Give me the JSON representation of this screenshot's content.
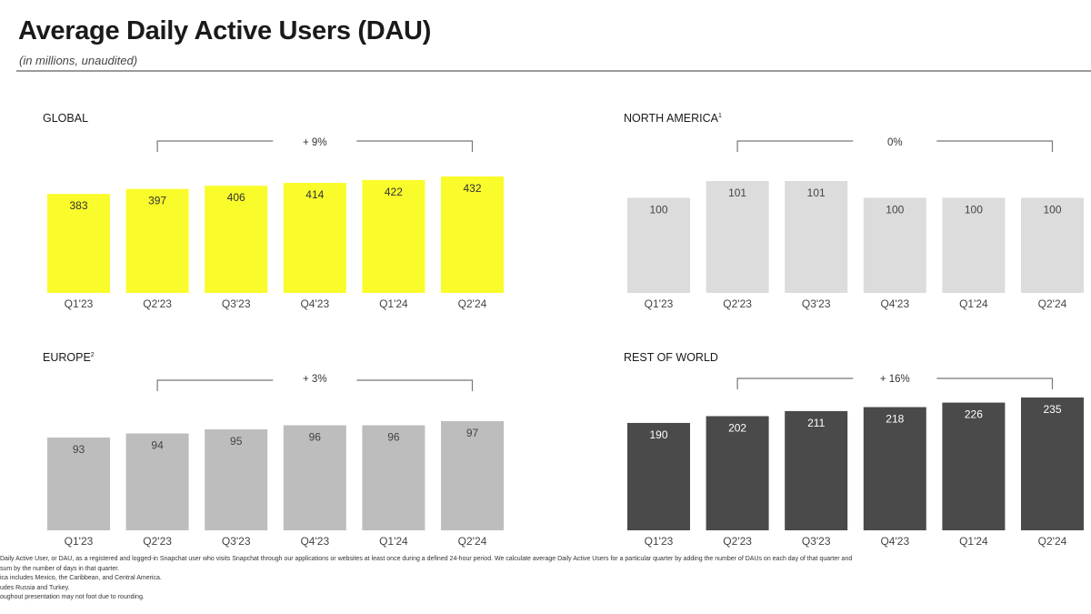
{
  "header": {
    "title": "Average Daily Active Users (DAU)",
    "subtitle": "(in millions, unaudited)"
  },
  "chart_data": [
    {
      "type": "bar",
      "title": "GLOBAL",
      "footnote_mark": "",
      "categories": [
        "Q1'23",
        "Q2'23",
        "Q3'23",
        "Q4'23",
        "Q1'24",
        "Q2'24"
      ],
      "values": [
        383,
        397,
        406,
        414,
        422,
        432
      ],
      "growth_label": "+ 9%",
      "color": "#f9fc2a",
      "label_color": "#333333"
    },
    {
      "type": "bar",
      "title": "NORTH AMERICA",
      "footnote_mark": "1",
      "categories": [
        "Q1'23",
        "Q2'23",
        "Q3'23",
        "Q4'23",
        "Q1'24",
        "Q2'24"
      ],
      "values": [
        100,
        101,
        101,
        100,
        100,
        100
      ],
      "growth_label": "0%",
      "color": "#dcdcdc",
      "label_color": "#444444"
    },
    {
      "type": "bar",
      "title": "EUROPE",
      "footnote_mark": "2",
      "categories": [
        "Q1'23",
        "Q2'23",
        "Q3'23",
        "Q4'23",
        "Q1'24",
        "Q2'24"
      ],
      "values": [
        93,
        94,
        95,
        96,
        96,
        97
      ],
      "growth_label": "+ 3%",
      "color": "#bdbdbd",
      "label_color": "#444444"
    },
    {
      "type": "bar",
      "title": "REST OF WORLD",
      "footnote_mark": "",
      "categories": [
        "Q1'23",
        "Q2'23",
        "Q3'23",
        "Q4'23",
        "Q1'24",
        "Q2'24"
      ],
      "values": [
        190,
        202,
        211,
        218,
        226,
        235
      ],
      "growth_label": "+ 16%",
      "color": "#4a4a4a",
      "label_color": "#ffffff"
    }
  ],
  "footnotes": [
    "Daily Active User, or DAU, as a registered and logged-in Snapchat user who visits Snapchat through our applications or websites at least once during a defined 24-hour period. We calculate average Daily Active Users for a particular quarter by adding the number of DAUs on each day of that quarter and",
    "sum by the number of days in that quarter.",
    "ica includes Mexico, the Caribbean, and Central America.",
    "udes Russia and Turkey.",
    "oughout presentation may not foot due to rounding."
  ]
}
